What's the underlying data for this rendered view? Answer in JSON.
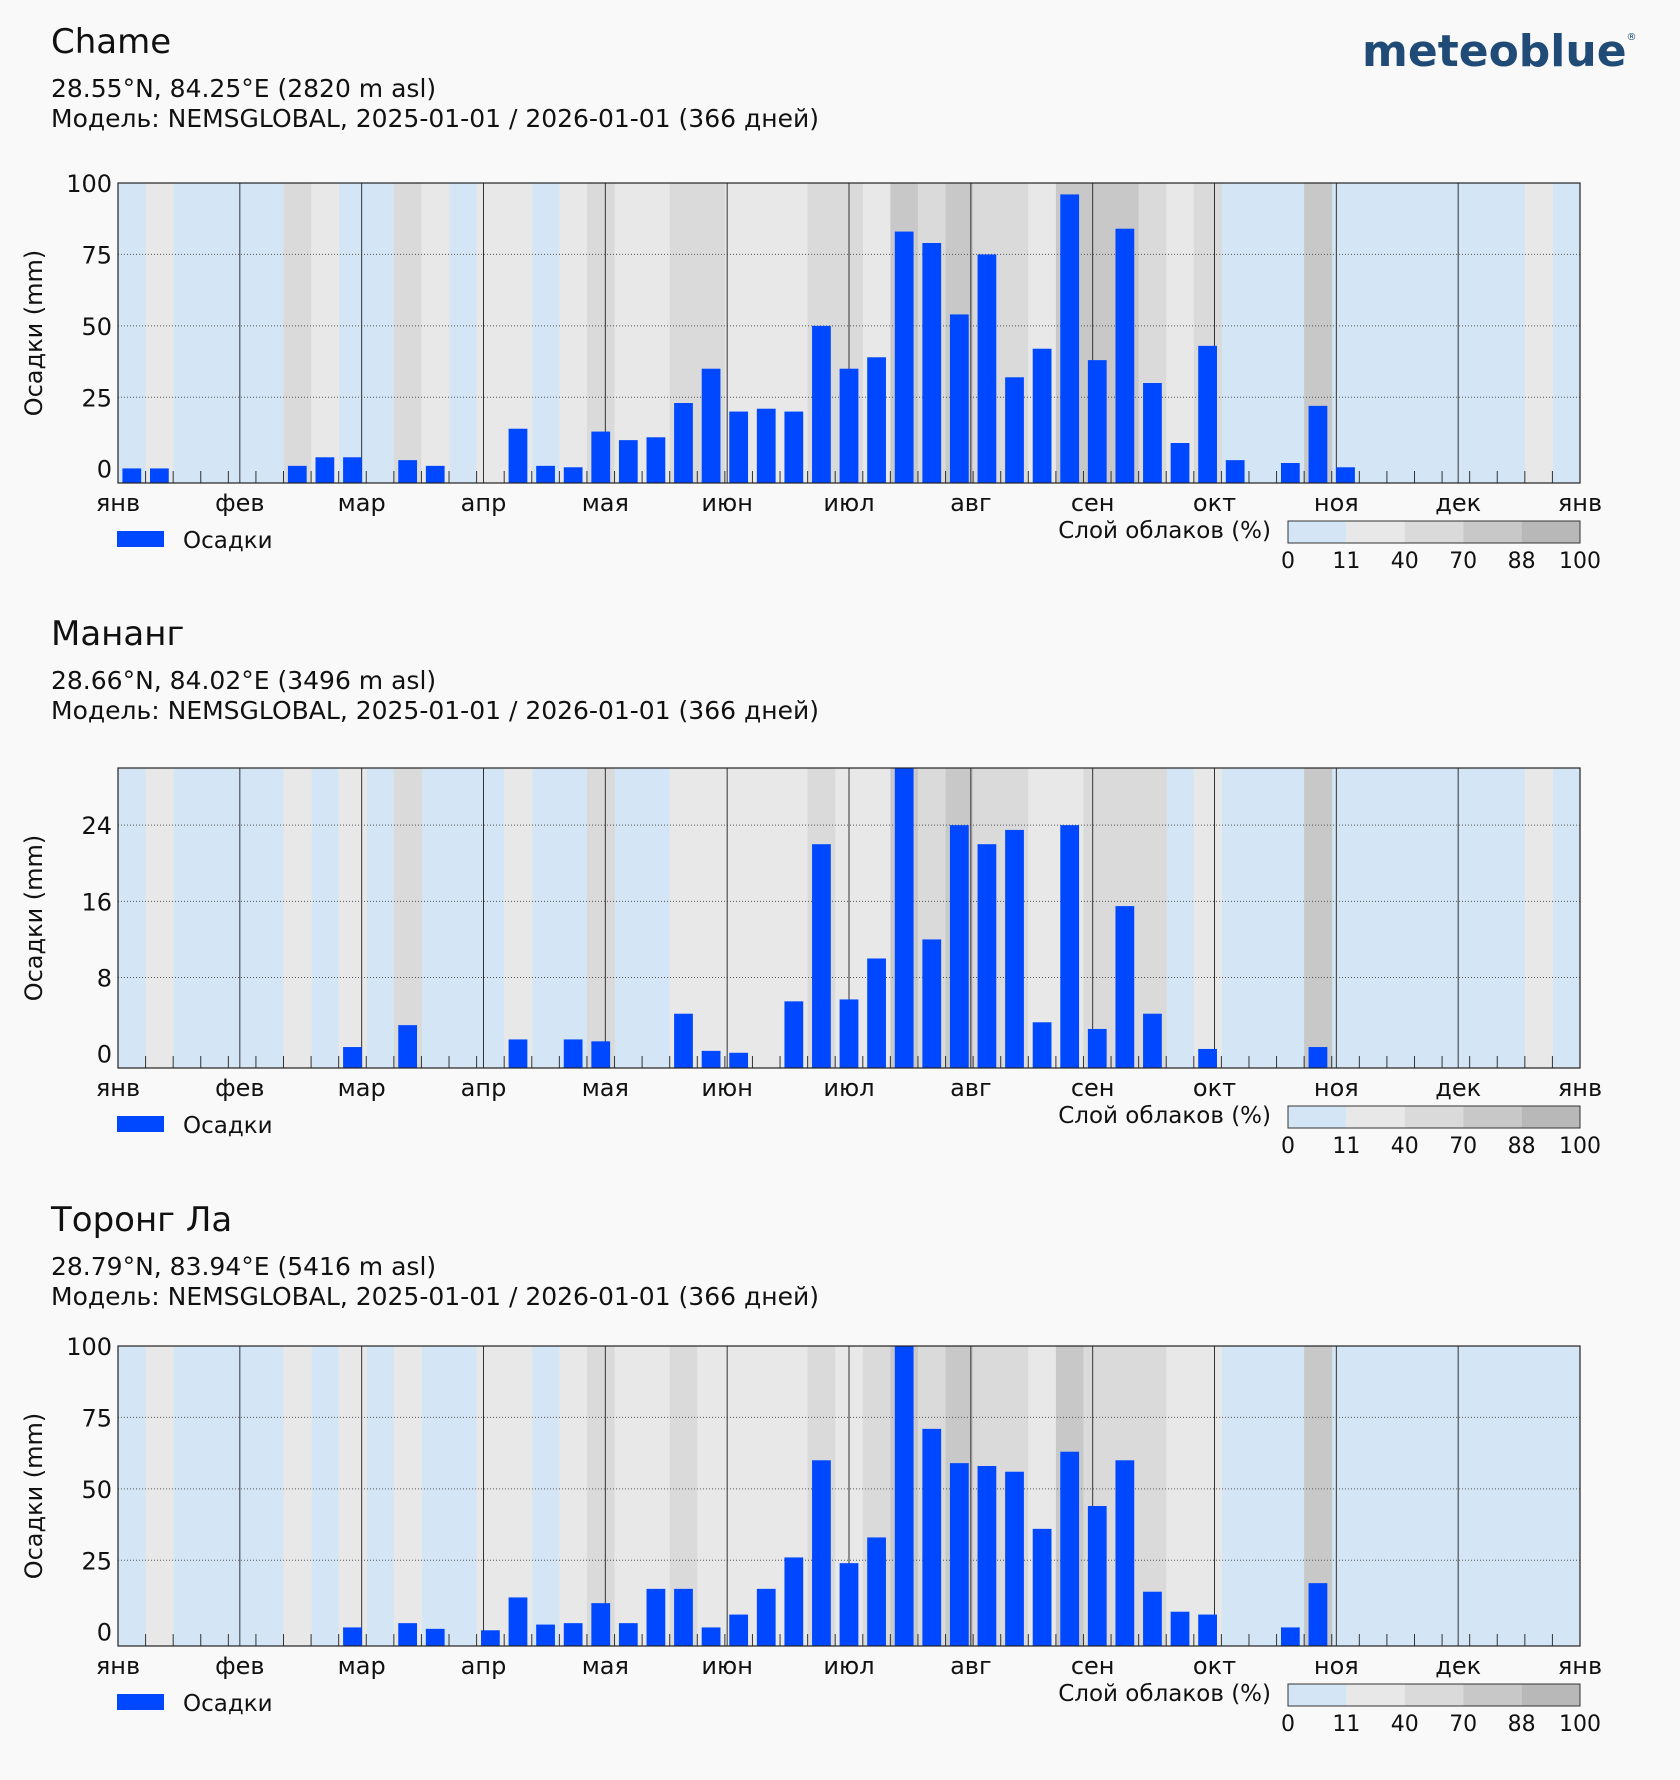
{
  "brand": {
    "name": "meteoblue",
    "mark": "®"
  },
  "cloud_legend": {
    "title": "Слой облаков (%)",
    "ticks": [
      "0",
      "11",
      "40",
      "70",
      "88",
      "100"
    ],
    "colors": [
      "#d4e6f5",
      "#e8e8e8",
      "#dadada",
      "#c8c8c8",
      "#b8b8b8"
    ]
  },
  "bar_color": "#0048ff",
  "chart_data": [
    {
      "type": "bar",
      "title": "Chame",
      "coords": "28.55°N, 84.25°E (2820 m asl)",
      "model": "Модель: NEMSGLOBAL, 2025-01-01 / 2026-01-01 (366 дней)",
      "ylabel": "Осадки (mm)",
      "legend": "Осадки",
      "yticks": [
        "0",
        "25",
        "50",
        "75",
        "100"
      ],
      "ytick_values": [
        0,
        25,
        50,
        75,
        100
      ],
      "ylim": [
        -5,
        100
      ],
      "months": [
        "янв",
        "фев",
        "мар",
        "апр",
        "мая",
        "июн",
        "июл",
        "авг",
        "сен",
        "окт",
        "ноя",
        "дек",
        "янв"
      ],
      "values": [
        0.1,
        0.1,
        0,
        0,
        0,
        0,
        1,
        4,
        4,
        0,
        3,
        1,
        0,
        0,
        14,
        1,
        0.5,
        13,
        10,
        11,
        23,
        35,
        20,
        21,
        20,
        50,
        35,
        39,
        83,
        79,
        54,
        75,
        32,
        42,
        96,
        38,
        84,
        30,
        9,
        43,
        3,
        0,
        2,
        22,
        0.5,
        0,
        0,
        0,
        0,
        0,
        0,
        0,
        0
      ],
      "cloud_bands": [
        [
          0,
          0
        ],
        [
          1,
          1
        ],
        [
          2,
          0
        ],
        [
          3,
          0
        ],
        [
          4,
          0
        ],
        [
          5,
          0
        ],
        [
          6,
          2
        ],
        [
          7,
          1
        ],
        [
          8,
          0
        ],
        [
          9,
          0
        ],
        [
          10,
          2
        ],
        [
          11,
          1
        ],
        [
          12,
          0
        ],
        [
          13,
          1
        ],
        [
          14,
          1
        ],
        [
          15,
          0
        ],
        [
          16,
          1
        ],
        [
          17,
          2
        ],
        [
          18,
          1
        ],
        [
          19,
          1
        ],
        [
          20,
          2
        ],
        [
          21,
          2
        ],
        [
          22,
          1
        ],
        [
          23,
          1
        ],
        [
          24,
          1
        ],
        [
          25,
          2
        ],
        [
          26,
          2
        ],
        [
          27,
          1
        ],
        [
          28,
          3
        ],
        [
          29,
          2
        ],
        [
          30,
          3
        ],
        [
          31,
          2
        ],
        [
          32,
          2
        ],
        [
          33,
          1
        ],
        [
          34,
          3
        ],
        [
          35,
          3
        ],
        [
          36,
          3
        ],
        [
          37,
          2
        ],
        [
          38,
          1
        ],
        [
          39,
          2
        ],
        [
          40,
          0
        ],
        [
          41,
          0
        ],
        [
          42,
          0
        ],
        [
          43,
          3
        ],
        [
          44,
          0
        ],
        [
          45,
          0
        ],
        [
          46,
          0
        ],
        [
          47,
          0
        ],
        [
          48,
          0
        ],
        [
          49,
          0
        ],
        [
          50,
          0
        ],
        [
          51,
          1
        ],
        [
          52,
          0
        ]
      ]
    },
    {
      "type": "bar",
      "title": "Мананг",
      "coords": "28.66°N, 84.02°E (3496 m asl)",
      "model": "Модель: NEMSGLOBAL, 2025-01-01 / 2026-01-01 (366 дней)",
      "ylabel": "Осадки (mm)",
      "legend": "Осадки",
      "yticks": [
        "0",
        "8",
        "16",
        "24"
      ],
      "ytick_values": [
        0,
        8,
        16,
        24
      ],
      "ylim": [
        -1.5,
        30
      ],
      "months": [
        "янв",
        "фев",
        "мар",
        "апр",
        "мая",
        "июн",
        "июл",
        "авг",
        "сен",
        "окт",
        "ноя",
        "дек",
        "янв"
      ],
      "values": [
        0,
        0,
        0,
        0,
        0,
        0,
        0,
        0,
        0.7,
        0,
        3,
        0,
        0,
        0,
        1.5,
        0,
        1.5,
        1.3,
        0,
        0,
        4.2,
        0.3,
        0.1,
        0,
        5.5,
        22,
        5.7,
        10,
        30,
        12,
        24,
        22,
        23.5,
        3.3,
        24,
        2.6,
        15.5,
        4.2,
        0,
        0.5,
        0,
        0,
        0,
        0.7,
        0,
        0,
        0,
        0,
        0,
        0,
        0,
        0,
        0
      ],
      "cloud_bands": [
        [
          0,
          0
        ],
        [
          1,
          1
        ],
        [
          2,
          0
        ],
        [
          3,
          0
        ],
        [
          4,
          0
        ],
        [
          5,
          0
        ],
        [
          6,
          1
        ],
        [
          7,
          0
        ],
        [
          8,
          1
        ],
        [
          9,
          0
        ],
        [
          10,
          2
        ],
        [
          11,
          0
        ],
        [
          12,
          0
        ],
        [
          13,
          0
        ],
        [
          14,
          1
        ],
        [
          15,
          0
        ],
        [
          16,
          0
        ],
        [
          17,
          2
        ],
        [
          18,
          0
        ],
        [
          19,
          0
        ],
        [
          20,
          1
        ],
        [
          21,
          1
        ],
        [
          22,
          1
        ],
        [
          23,
          1
        ],
        [
          24,
          1
        ],
        [
          25,
          2
        ],
        [
          26,
          1
        ],
        [
          27,
          1
        ],
        [
          28,
          3
        ],
        [
          29,
          2
        ],
        [
          30,
          3
        ],
        [
          31,
          2
        ],
        [
          32,
          2
        ],
        [
          33,
          1
        ],
        [
          34,
          1
        ],
        [
          35,
          2
        ],
        [
          36,
          2
        ],
        [
          37,
          2
        ],
        [
          38,
          0
        ],
        [
          39,
          1
        ],
        [
          40,
          0
        ],
        [
          41,
          0
        ],
        [
          42,
          0
        ],
        [
          43,
          3
        ],
        [
          44,
          0
        ],
        [
          45,
          0
        ],
        [
          46,
          0
        ],
        [
          47,
          0
        ],
        [
          48,
          0
        ],
        [
          49,
          0
        ],
        [
          50,
          0
        ],
        [
          51,
          1
        ],
        [
          52,
          0
        ]
      ]
    },
    {
      "type": "bar",
      "title": "Торонг Ла",
      "coords": "28.79°N, 83.94°E (5416 m asl)",
      "model": "Модель: NEMSGLOBAL, 2025-01-01 / 2026-01-01 (366 дней)",
      "ylabel": "Осадки (mm)",
      "legend": "Осадки",
      "yticks": [
        "0",
        "25",
        "50",
        "75",
        "100"
      ],
      "ytick_values": [
        0,
        25,
        50,
        75,
        100
      ],
      "ylim": [
        -5,
        100
      ],
      "months": [
        "янв",
        "фев",
        "мар",
        "апр",
        "мая",
        "июн",
        "июл",
        "авг",
        "сен",
        "окт",
        "ноя",
        "дек",
        "янв"
      ],
      "values": [
        0,
        0,
        0,
        0,
        0,
        0,
        0,
        0,
        1.5,
        0,
        3,
        1,
        0,
        0.5,
        12,
        2.5,
        3,
        10,
        3,
        15,
        15,
        1.5,
        6,
        15,
        26,
        60,
        24,
        33,
        100,
        71,
        59,
        58,
        56,
        36,
        63,
        44,
        60,
        14,
        7,
        6,
        0,
        0,
        1.5,
        17,
        0,
        0,
        0,
        0,
        0,
        0,
        0,
        0,
        0
      ],
      "cloud_bands": [
        [
          0,
          0
        ],
        [
          1,
          1
        ],
        [
          2,
          0
        ],
        [
          3,
          0
        ],
        [
          4,
          0
        ],
        [
          5,
          0
        ],
        [
          6,
          1
        ],
        [
          7,
          0
        ],
        [
          8,
          1
        ],
        [
          9,
          0
        ],
        [
          10,
          1
        ],
        [
          11,
          0
        ],
        [
          12,
          0
        ],
        [
          13,
          1
        ],
        [
          14,
          1
        ],
        [
          15,
          0
        ],
        [
          16,
          1
        ],
        [
          17,
          2
        ],
        [
          18,
          1
        ],
        [
          19,
          1
        ],
        [
          20,
          2
        ],
        [
          21,
          1
        ],
        [
          22,
          1
        ],
        [
          23,
          1
        ],
        [
          24,
          1
        ],
        [
          25,
          2
        ],
        [
          26,
          1
        ],
        [
          27,
          2
        ],
        [
          28,
          3
        ],
        [
          29,
          2
        ],
        [
          30,
          3
        ],
        [
          31,
          2
        ],
        [
          32,
          2
        ],
        [
          33,
          1
        ],
        [
          34,
          3
        ],
        [
          35,
          2
        ],
        [
          36,
          2
        ],
        [
          37,
          2
        ],
        [
          38,
          1
        ],
        [
          39,
          1
        ],
        [
          40,
          0
        ],
        [
          41,
          0
        ],
        [
          42,
          0
        ],
        [
          43,
          3
        ],
        [
          44,
          0
        ],
        [
          45,
          0
        ],
        [
          46,
          0
        ],
        [
          47,
          0
        ],
        [
          48,
          0
        ],
        [
          49,
          0
        ],
        [
          50,
          0
        ],
        [
          51,
          0
        ],
        [
          52,
          0
        ]
      ]
    }
  ]
}
